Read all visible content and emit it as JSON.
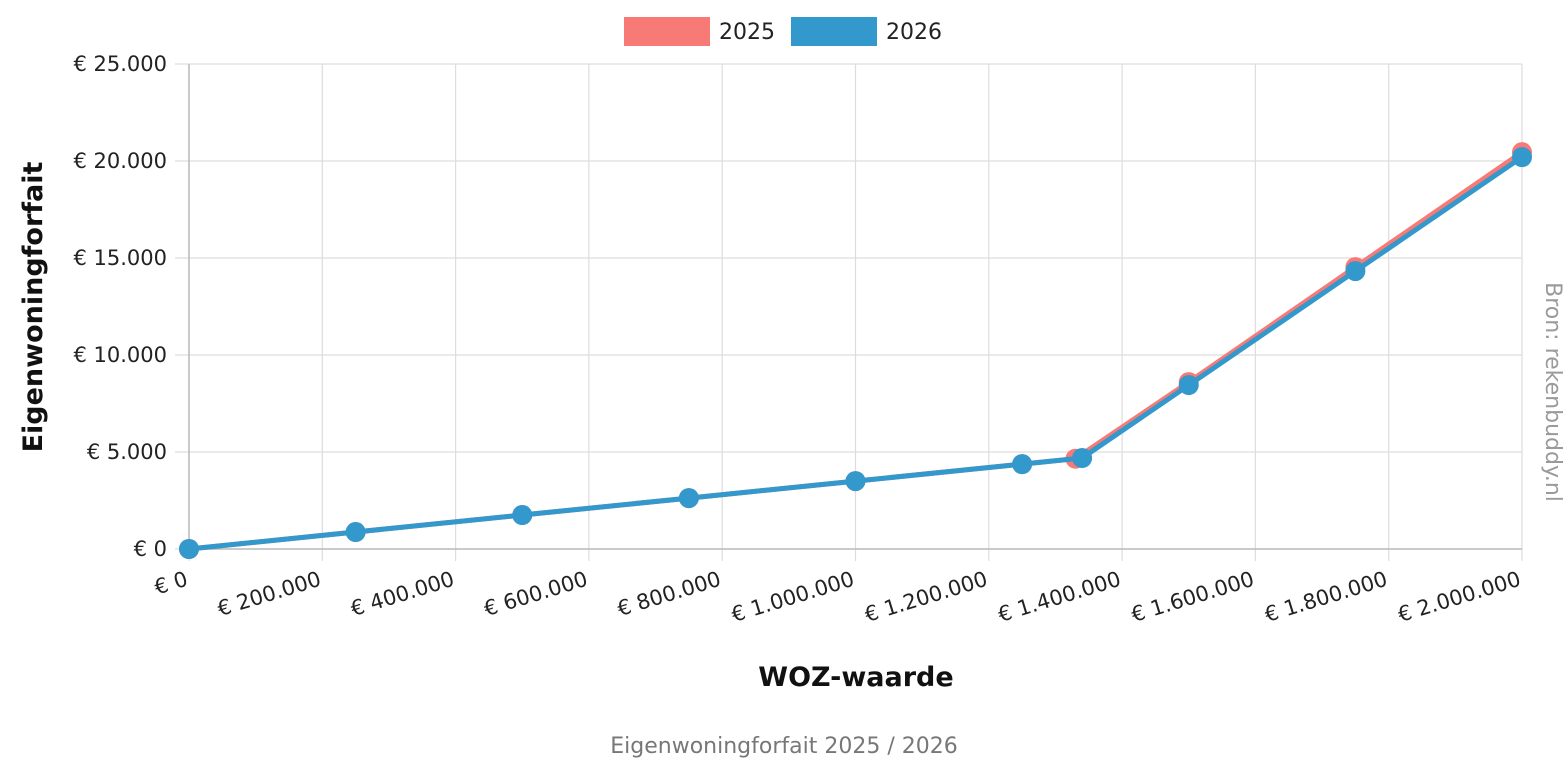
{
  "chart_data": {
    "type": "line",
    "x": [
      0,
      250000,
      500000,
      750000,
      1000000,
      1250000,
      1330000,
      1500000,
      1750000,
      2000000
    ],
    "series": [
      {
        "name": "2025",
        "color": "#f77a77",
        "x": [
          0,
          250000,
          500000,
          750000,
          1000000,
          1250000,
          1330000,
          1500000,
          1750000,
          2000000
        ],
        "values": [
          0,
          875,
          1750,
          2625,
          3500,
          4375,
          4655,
          8605,
          14530,
          20455
        ]
      },
      {
        "name": "2026",
        "color": "#3398cc",
        "x": [
          0,
          250000,
          500000,
          750000,
          1000000,
          1250000,
          1340000,
          1500000,
          1750000,
          2000000
        ],
        "values": [
          0,
          875,
          1750,
          2625,
          3500,
          4375,
          4690,
          8450,
          14325,
          20200
        ]
      }
    ],
    "xlim": [
      0,
      2000000
    ],
    "ylim": [
      0,
      25000
    ],
    "xticks": [
      0,
      200000,
      400000,
      600000,
      800000,
      1000000,
      1200000,
      1400000,
      1600000,
      1800000,
      2000000
    ],
    "xtick_labels": [
      "€ 0",
      "€ 200.000",
      "€ 400.000",
      "€ 600.000",
      "€ 800.000",
      "€ 1.000.000",
      "€ 1.200.000",
      "€ 1.400.000",
      "€ 1.600.000",
      "€ 1.800.000",
      "€ 2.000.000"
    ],
    "yticks": [
      0,
      5000,
      10000,
      15000,
      20000,
      25000
    ],
    "ytick_labels": [
      "€ 0",
      "€ 5.000",
      "€ 10.000",
      "€ 15.000",
      "€ 20.000",
      "€ 25.000"
    ],
    "xlabel": "WOZ-waarde",
    "ylabel": "Eigenwoningforfait",
    "source": "Bron: rekenbuddy.nl",
    "caption": "Eigenwoningforfait 2025 / 2026",
    "grid": true,
    "legend_position": "top-center"
  }
}
